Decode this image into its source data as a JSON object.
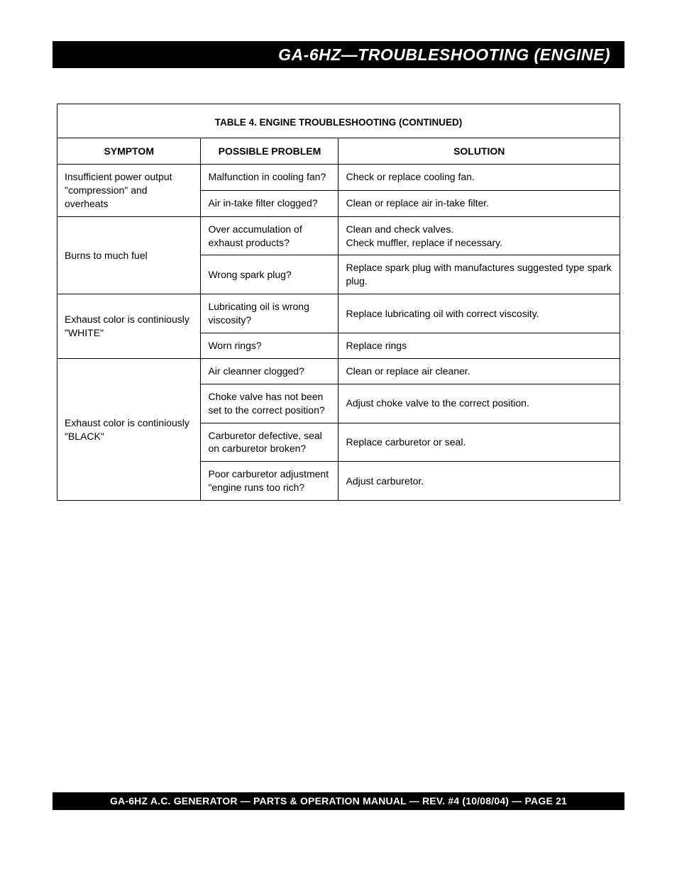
{
  "header": {
    "title": "GA-6HZ—TROUBLESHOOTING (ENGINE)"
  },
  "table": {
    "type": "table",
    "background_color": "#ffffff",
    "border_color": "#000000",
    "title": "TABLE 4. ENGINE TROUBLESHOOTING (CONTINUED)",
    "title_fontsize": 13.5,
    "header_fontsize": 14,
    "cell_fontsize": 14,
    "columns": [
      {
        "label": "SYMPTOM",
        "width_pct": 25.5
      },
      {
        "label": "POSSIBLE PROBLEM",
        "width_pct": 24.5
      },
      {
        "label": "SOLUTION",
        "width_pct": 50
      }
    ],
    "groups": [
      {
        "symptom": "Insufficient power output \"compression\" and overheats",
        "rows": [
          {
            "problem": "Malfunction in cooling fan?",
            "solution": "Check or replace cooling fan."
          },
          {
            "problem": "Air in-take filter clogged?",
            "solution": "Clean or replace air in-take filter."
          }
        ]
      },
      {
        "symptom": "Burns to much fuel",
        "rows": [
          {
            "problem": "Over accumulation of exhaust products?",
            "solution": "Clean and check valves.\nCheck muffler, replace if necessary."
          },
          {
            "problem": "Wrong spark plug?",
            "solution": "Replace spark plug with manufactures suggested type spark plug."
          }
        ]
      },
      {
        "symptom": "Exhaust color is continiously \"WHITE\"",
        "rows": [
          {
            "problem": "Lubricating oil is wrong viscosity?",
            "solution": "Replace lubricating oil  with correct viscosity."
          },
          {
            "problem": "Worn rings?",
            "solution": "Replace rings"
          }
        ]
      },
      {
        "symptom": "Exhaust color is continiously \"BLACK\"",
        "rows": [
          {
            "problem": "Air cleanner clogged?",
            "solution": "Clean or replace air cleaner."
          },
          {
            "problem": "Choke valve has not been set to the correct position?",
            "solution": "Adjust choke valve to the correct position."
          },
          {
            "problem": "Carburetor defective, seal on carburetor broken?",
            "solution": "Replace carburetor or seal."
          },
          {
            "problem": "Poor carburetor adjustment \"engine runs too rich?",
            "solution": "Adjust carburetor."
          }
        ]
      }
    ]
  },
  "footer": {
    "text": "GA-6HZ A.C. GENERATOR — PARTS & OPERATION MANUAL — REV. #4  (10/08/04) — PAGE 21"
  }
}
